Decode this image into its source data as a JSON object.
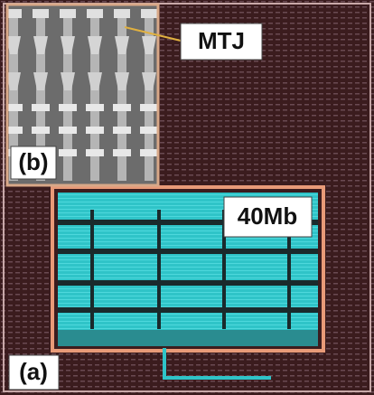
{
  "labels": {
    "mtj": "MTJ",
    "capacity": "40Mb",
    "inset": "(b)",
    "main": "(a)"
  }
}
